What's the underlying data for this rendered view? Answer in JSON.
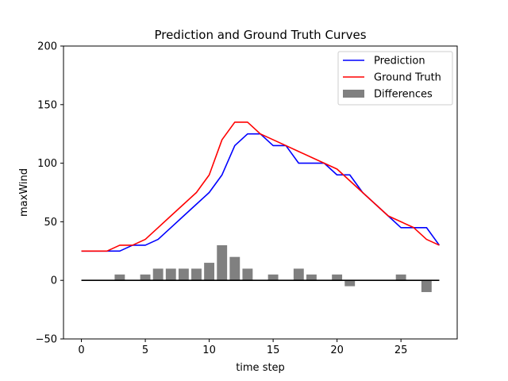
{
  "chart_data": {
    "type": "line",
    "title": "Prediction and Ground Truth Curves",
    "xlabel": "time step",
    "ylabel": "maxWind",
    "xlim": [
      -1.4,
      29.4
    ],
    "ylim": [
      -50,
      200
    ],
    "xticks": [
      0,
      5,
      10,
      15,
      20,
      25
    ],
    "yticks": [
      -50,
      0,
      50,
      100,
      150,
      200
    ],
    "x": [
      0,
      1,
      2,
      3,
      4,
      5,
      6,
      7,
      8,
      9,
      10,
      11,
      12,
      13,
      14,
      15,
      16,
      17,
      18,
      19,
      20,
      21,
      22,
      23,
      24,
      25,
      26,
      27,
      28
    ],
    "series": [
      {
        "name": "Prediction",
        "kind": "line",
        "color": "#0000ff",
        "values": [
          25,
          25,
          25,
          25,
          30,
          30,
          35,
          45,
          55,
          65,
          75,
          90,
          115,
          125,
          125,
          115,
          115,
          100,
          100,
          100,
          90,
          90,
          75,
          65,
          55,
          45,
          45,
          45,
          30
        ]
      },
      {
        "name": "Ground Truth",
        "kind": "line",
        "color": "#ff0000",
        "values": [
          25,
          25,
          25,
          30,
          30,
          35,
          45,
          55,
          65,
          75,
          90,
          120,
          135,
          135,
          125,
          120,
          115,
          110,
          105,
          100,
          95,
          85,
          75,
          65,
          55,
          50,
          45,
          35,
          30
        ]
      },
      {
        "name": "Differences",
        "kind": "bar",
        "color": "#808080",
        "values": [
          0,
          0,
          0,
          5,
          0,
          5,
          10,
          10,
          10,
          10,
          15,
          30,
          20,
          10,
          0,
          5,
          0,
          10,
          5,
          0,
          5,
          -5,
          0,
          0,
          0,
          5,
          0,
          -10,
          0
        ]
      }
    ],
    "zero_line": {
      "y": 0,
      "x_range": [
        0,
        28
      ],
      "color": "#000000"
    },
    "legend_position": "top-right",
    "grid": false
  }
}
